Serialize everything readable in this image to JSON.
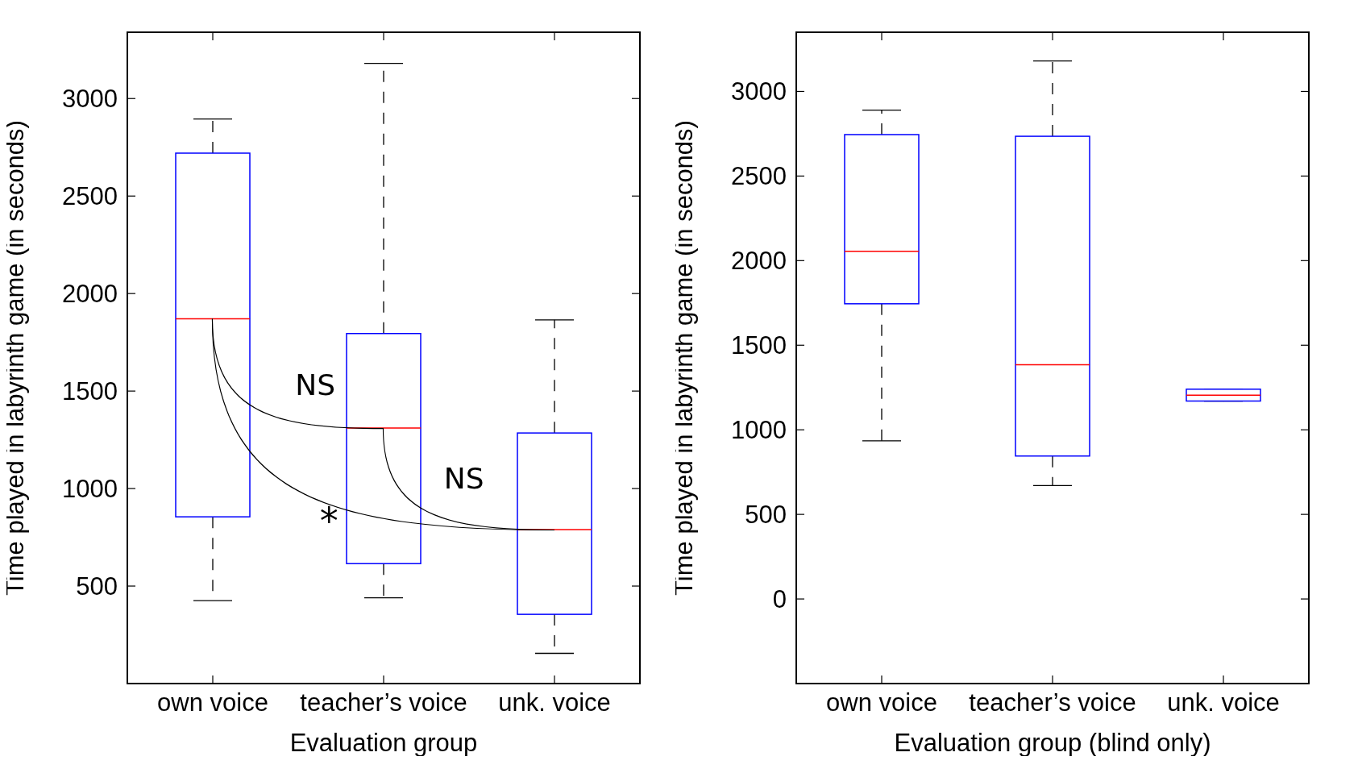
{
  "chart_data": [
    {
      "type": "box",
      "categories": [
        "own voice",
        "teacher’s voice",
        "unk. voice"
      ],
      "xlabel": "Evaluation group",
      "ylabel": "Time played in labyrinth game (in seconds)",
      "ylim": [
        0,
        3340
      ],
      "yticks": [
        500,
        1000,
        1500,
        2000,
        2500,
        3000
      ],
      "series": [
        {
          "color": "#0000ff",
          "boxes": [
            {
              "low": 425,
              "q1": 855,
              "median": 1870,
              "q3": 2720,
              "high": 2895
            },
            {
              "low": 440,
              "q1": 615,
              "median": 1310,
              "q3": 1795,
              "high": 3180
            },
            {
              "low": 155,
              "q1": 355,
              "median": 790,
              "q3": 1285,
              "high": 1865
            }
          ]
        }
      ],
      "annotations": [
        "NS",
        "NS",
        "*"
      ]
    },
    {
      "type": "box",
      "categories": [
        "own voice",
        "teacher’s voice",
        "unk. voice"
      ],
      "xlabel": "Evaluation group (blind only)",
      "ylabel": "Time played in labyrinth game (in seconds)",
      "ylim": [
        -500,
        3350
      ],
      "yticks": [
        0,
        500,
        1000,
        1500,
        2000,
        2500,
        3000
      ],
      "series": [
        {
          "color": "#0000ff",
          "boxes": [
            {
              "low": 935,
              "q1": 1745,
              "median": 2055,
              "q3": 2745,
              "high": 2890
            },
            {
              "low": 670,
              "q1": 845,
              "median": 1385,
              "q3": 2735,
              "high": 3180
            },
            {
              "low": 1170,
              "q1": 1170,
              "median": 1205,
              "q3": 1240,
              "high": 1240
            }
          ]
        }
      ]
    }
  ]
}
